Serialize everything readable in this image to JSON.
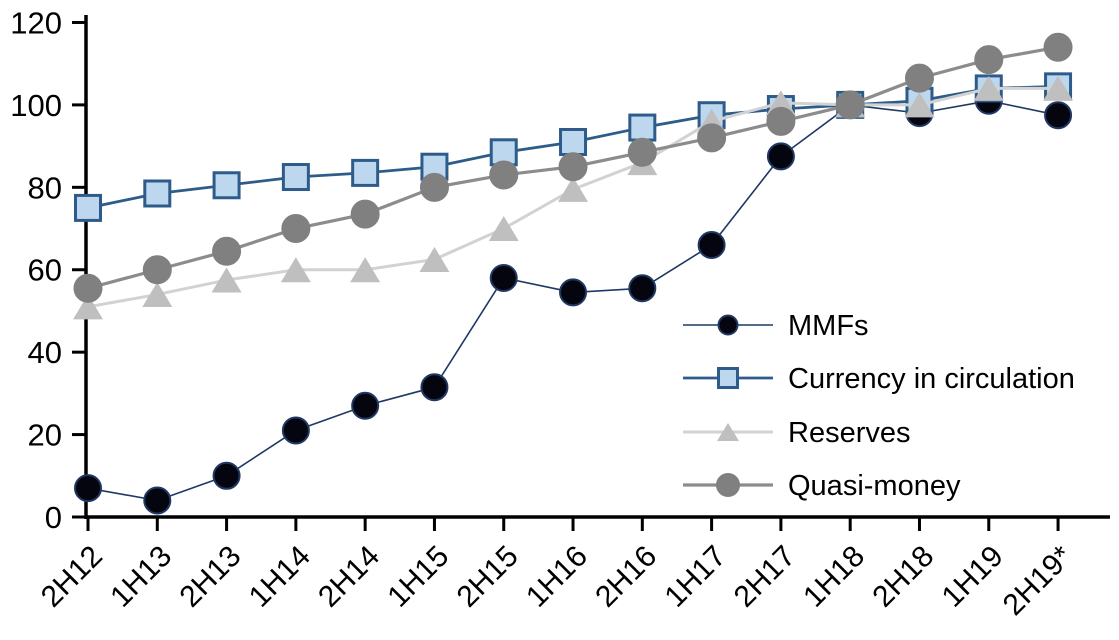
{
  "chart_data": {
    "type": "line",
    "title": "",
    "xlabel": "",
    "ylabel": "",
    "ylim": [
      0,
      120
    ],
    "yticks": [
      0,
      20,
      40,
      60,
      80,
      100,
      120
    ],
    "grid": false,
    "legend_position": "middle-right",
    "categories": [
      "2H12",
      "1H13",
      "2H13",
      "1H14",
      "2H14",
      "1H15",
      "2H15",
      "1H16",
      "2H16",
      "1H17",
      "2H17",
      "1H18",
      "2H18",
      "1H19",
      "2H19*"
    ],
    "series": [
      {
        "name": "MMFs",
        "marker": "circle",
        "line_color": "#1F3864",
        "marker_fill": "#050510",
        "marker_stroke": "#1F3864",
        "values": [
          7,
          4,
          10,
          21,
          27,
          31.5,
          58,
          54.5,
          55.5,
          66,
          87.5,
          100,
          98,
          101,
          97.5
        ]
      },
      {
        "name": "Currency in circulation",
        "marker": "square",
        "line_color": "#2E5C8A",
        "marker_fill": "#BDD7EE",
        "marker_stroke": "#2E5C8A",
        "values": [
          75,
          78.5,
          80.5,
          82.5,
          83.5,
          85,
          88.5,
          91,
          94.5,
          97.5,
          99,
          100,
          101,
          104,
          104.5
        ]
      },
      {
        "name": "Reserves",
        "marker": "triangle",
        "line_color": "#D2D2D2",
        "marker_fill": "#BFBFBF",
        "marker_stroke": "#BFBFBF",
        "values": [
          51,
          54,
          57.5,
          60,
          60,
          62.5,
          70,
          79.5,
          86,
          96,
          100.5,
          100,
          100,
          104,
          104
        ]
      },
      {
        "name": "Quasi-money",
        "marker": "circle",
        "line_color": "#8C8C8C",
        "marker_fill": "#808080",
        "marker_stroke": "#808080",
        "values": [
          55.5,
          60,
          64.5,
          70,
          73.5,
          80,
          83,
          85,
          88.5,
          92,
          96,
          100,
          106.5,
          111,
          114
        ]
      }
    ],
    "axis_color": "#000000",
    "background_color": "#FFFFFF"
  }
}
